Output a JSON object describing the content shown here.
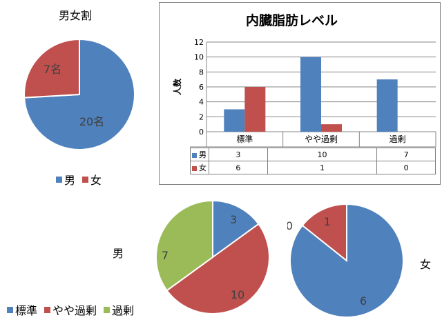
{
  "colors": {
    "male": "#4f81bd",
    "female": "#c0504d",
    "kajo": "#9bbb59"
  },
  "chart_data": [
    {
      "type": "pie",
      "title": "男女割",
      "categories": [
        "男",
        "女"
      ],
      "values": [
        20,
        7
      ],
      "labels": [
        "20名",
        "7名"
      ],
      "legend": "bottom"
    },
    {
      "type": "bar",
      "title": "内臓脂肪レベル",
      "ylabel": "人数",
      "categories": [
        "標準",
        "やや過剰",
        "過剰"
      ],
      "series": [
        {
          "name": "男",
          "values": [
            3,
            10,
            7
          ]
        },
        {
          "name": "女",
          "values": [
            6,
            1,
            0
          ]
        }
      ],
      "ylim": [
        0,
        12
      ],
      "yticks": [
        0,
        2,
        4,
        6,
        8,
        10,
        12
      ],
      "grid": true,
      "data_table": true
    },
    {
      "type": "pie",
      "title": "男",
      "categories": [
        "標準",
        "やや過剰",
        "過剰"
      ],
      "values": [
        3,
        10,
        7
      ],
      "legend": "bottom-left"
    },
    {
      "type": "pie",
      "title": "女",
      "categories": [
        "標準",
        "やや過剰",
        "過剰"
      ],
      "values": [
        6,
        1,
        0
      ]
    }
  ],
  "legend_text": {
    "male": "男",
    "female": "女",
    "std": "標準",
    "yaya": "やや過剰",
    "kajo": "過剰"
  }
}
